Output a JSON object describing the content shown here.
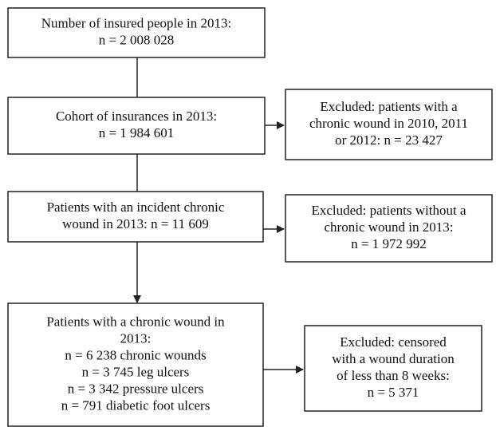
{
  "nodes": [
    {
      "lines": [
        "Number of insured people in 2013:",
        "n = 2 008 028"
      ]
    },
    {
      "lines": [
        "Cohort of insurances in 2013:",
        "n = 1 984 601"
      ]
    },
    {
      "lines": [
        "Excluded: patients with a",
        "chronic wound in 2010, 2011",
        "or 2012: n = 23 427"
      ]
    },
    {
      "lines": [
        "Patients with an incident chronic",
        "wound in 2013: n = 11 609"
      ]
    },
    {
      "lines": [
        "Excluded: patients without a",
        "chronic wound in 2013:",
        "n = 1 972 992"
      ]
    },
    {
      "lines": [
        "Patients with a chronic wound in",
        "2013:",
        "n = 6 238 chronic wounds",
        "n = 3 745 leg ulcers",
        "n = 3 342 pressure ulcers",
        "n = 791 diabetic foot ulcers"
      ]
    },
    {
      "lines": [
        "Excluded: censored",
        "with a wound duration",
        "of less than 8 weeks:",
        "n = 5 371"
      ]
    }
  ]
}
